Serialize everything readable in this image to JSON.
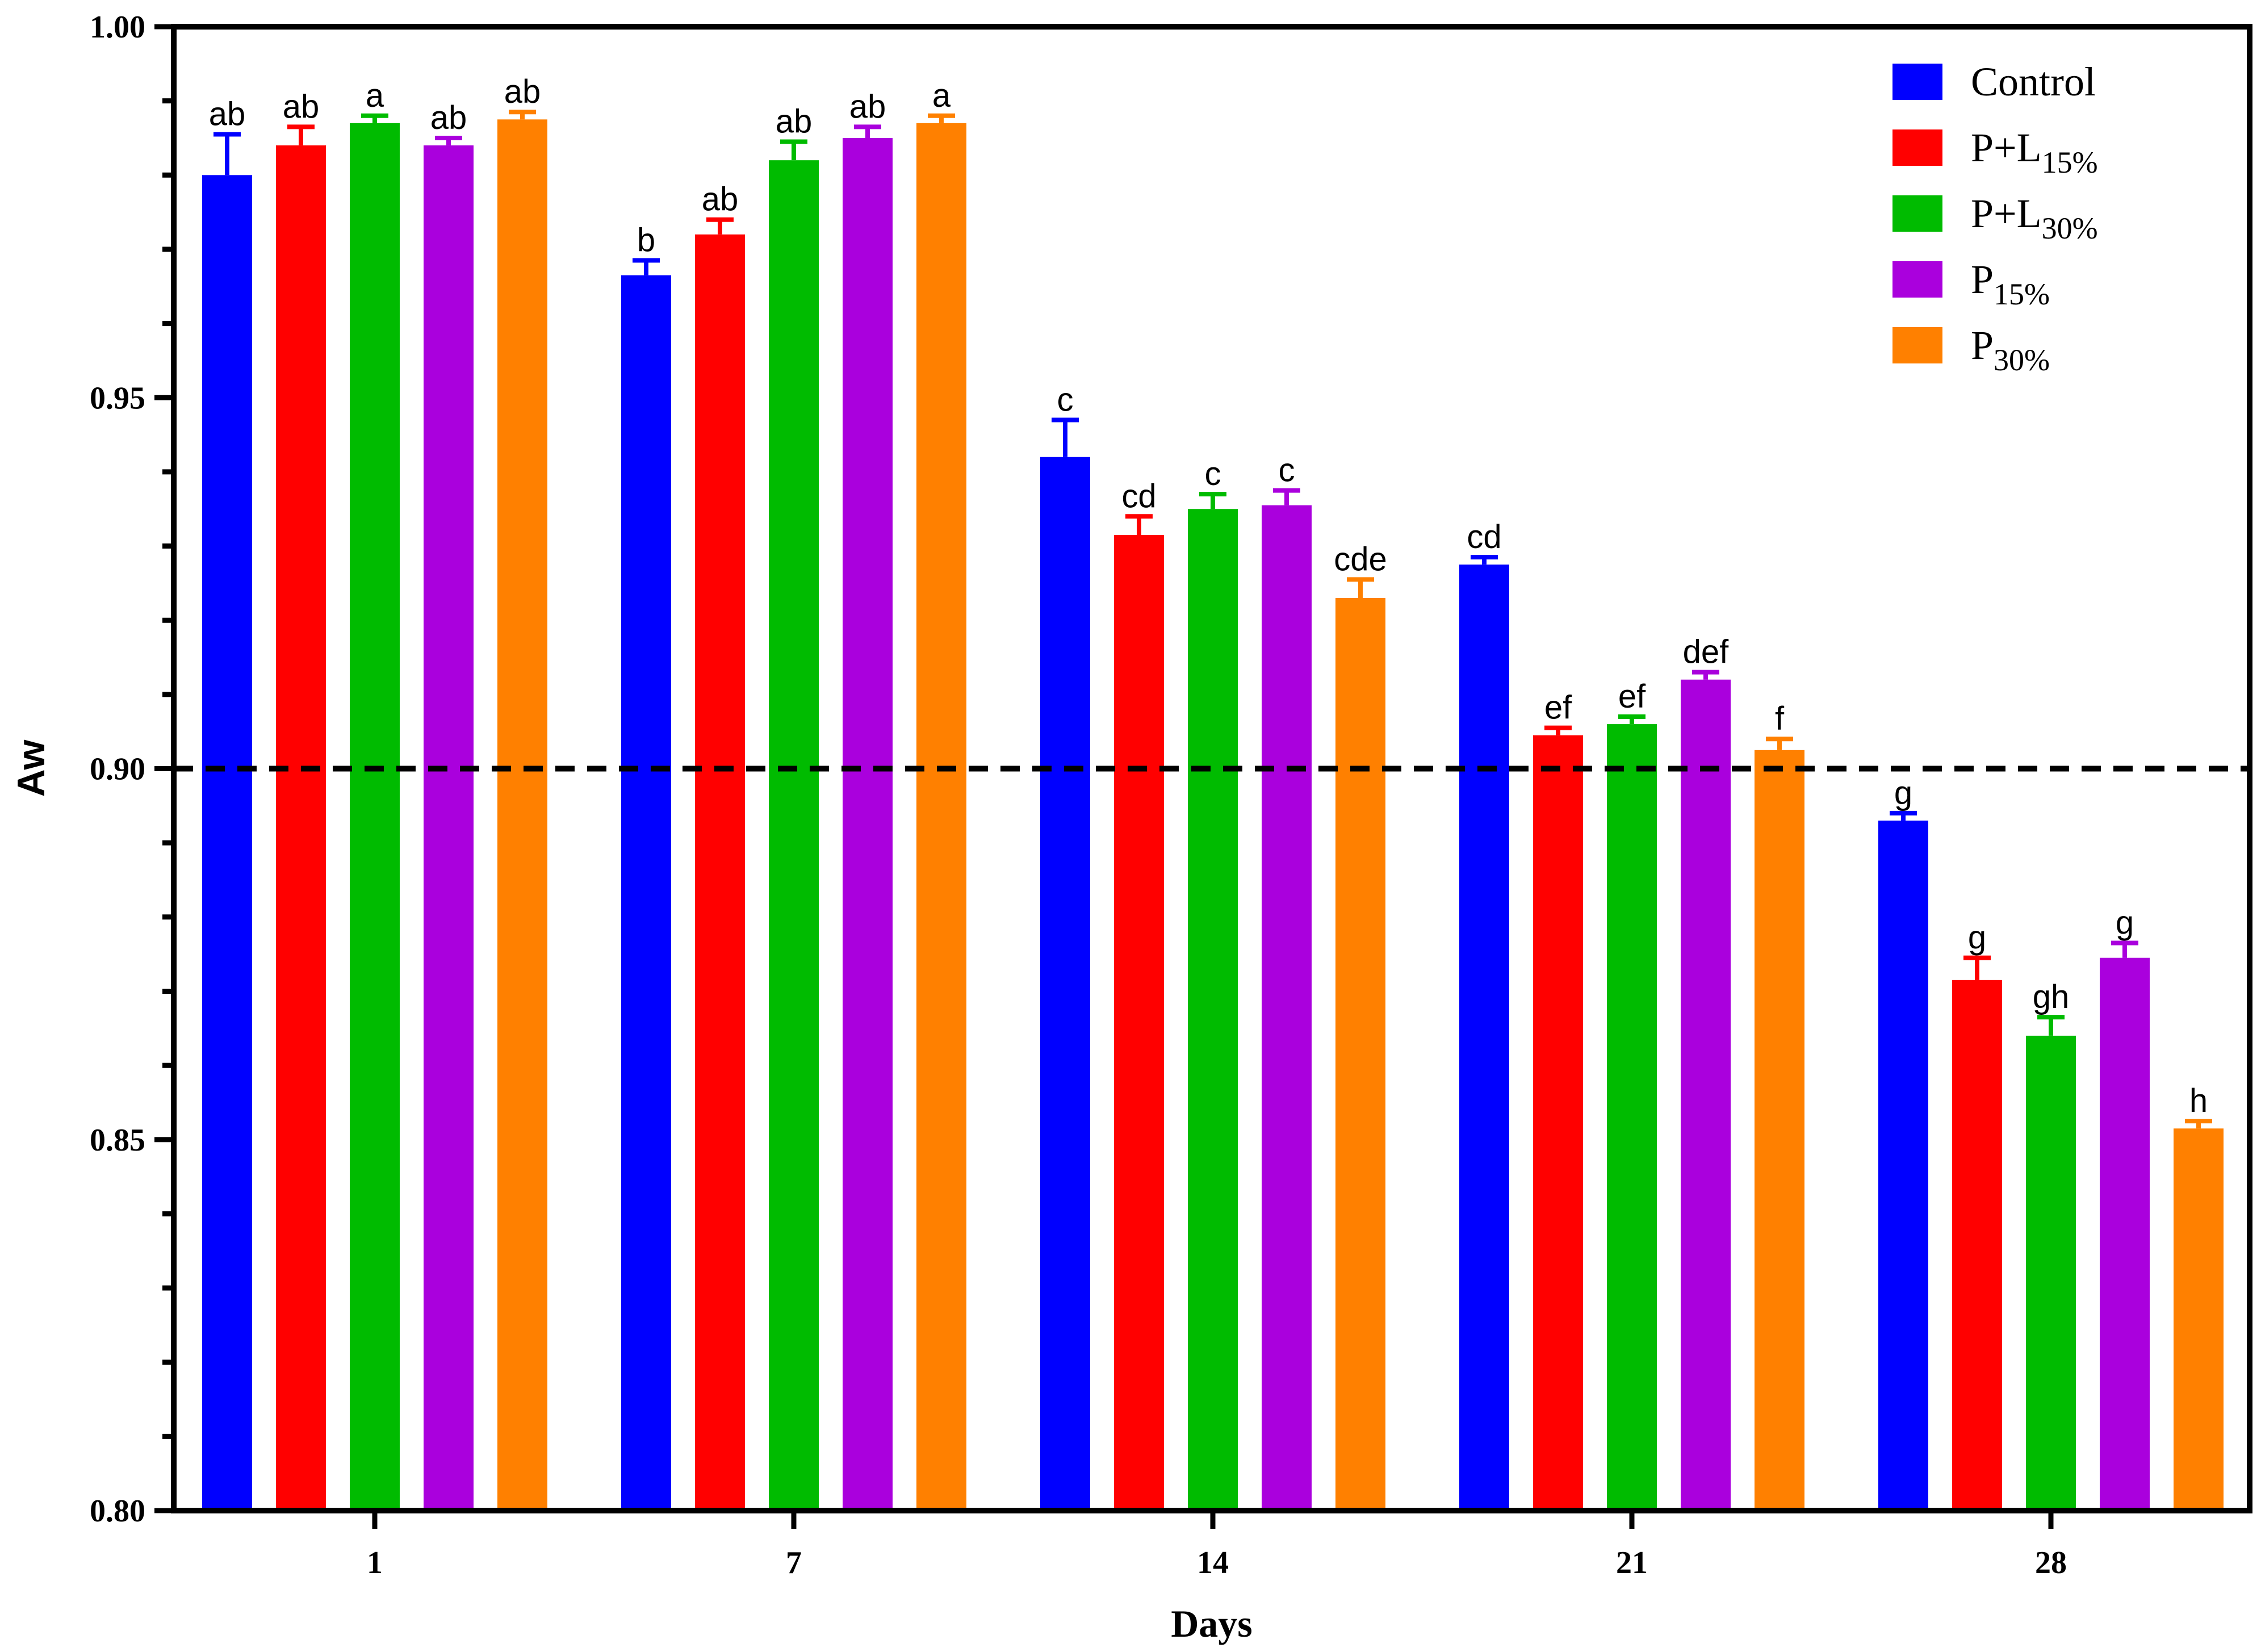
{
  "chart_data": {
    "type": "bar",
    "xlabel": "Days",
    "ylabel": "Aw",
    "ylim": [
      0.8,
      1.0
    ],
    "yticks": [
      "0.80",
      "0.85",
      "0.90",
      "0.95",
      "1.00"
    ],
    "reference_line": 0.9,
    "reference_line_style": "dashed",
    "categories": [
      "1",
      "7",
      "14",
      "21",
      "28"
    ],
    "legend_position": "top-right",
    "series": [
      {
        "name": "Control",
        "legend_base": "Control",
        "legend_sub": "",
        "color": "#0000ff",
        "values": [
          0.98,
          0.9665,
          0.942,
          0.9275,
          0.893
        ],
        "errors": [
          0.0055,
          0.002,
          0.005,
          0.001,
          0.001
        ],
        "labels": [
          "ab",
          "b",
          "c",
          "cd",
          "g"
        ]
      },
      {
        "name": "P+L15%",
        "legend_base": "P+L",
        "legend_sub": "15%",
        "color": "#ff0000",
        "values": [
          0.984,
          0.972,
          0.9315,
          0.9045,
          0.8715
        ],
        "errors": [
          0.0025,
          0.002,
          0.0025,
          0.001,
          0.003
        ],
        "labels": [
          "ab",
          "ab",
          "cd",
          "ef",
          "g"
        ]
      },
      {
        "name": "P+L30%",
        "legend_base": "P+L",
        "legend_sub": "30%",
        "color": "#00bb00",
        "values": [
          0.987,
          0.982,
          0.935,
          0.906,
          0.864
        ],
        "errors": [
          0.001,
          0.0025,
          0.002,
          0.001,
          0.0025
        ],
        "labels": [
          "a",
          "ab",
          "c",
          "ef",
          "gh"
        ]
      },
      {
        "name": "P15%",
        "legend_base": "P",
        "legend_sub": "15%",
        "color": "#aa00dd",
        "values": [
          0.984,
          0.985,
          0.9355,
          0.912,
          0.8745
        ],
        "errors": [
          0.001,
          0.0015,
          0.002,
          0.001,
          0.002
        ],
        "labels": [
          "ab",
          "ab",
          "c",
          "def",
          "g"
        ]
      },
      {
        "name": "P30%",
        "legend_base": "P",
        "legend_sub": "30%",
        "color": "#ff8000",
        "values": [
          0.9875,
          0.987,
          0.923,
          0.9025,
          0.8515
        ],
        "errors": [
          0.001,
          0.001,
          0.0025,
          0.0015,
          0.001
        ],
        "labels": [
          "ab",
          "a",
          "cde",
          "f",
          "h"
        ]
      }
    ]
  }
}
